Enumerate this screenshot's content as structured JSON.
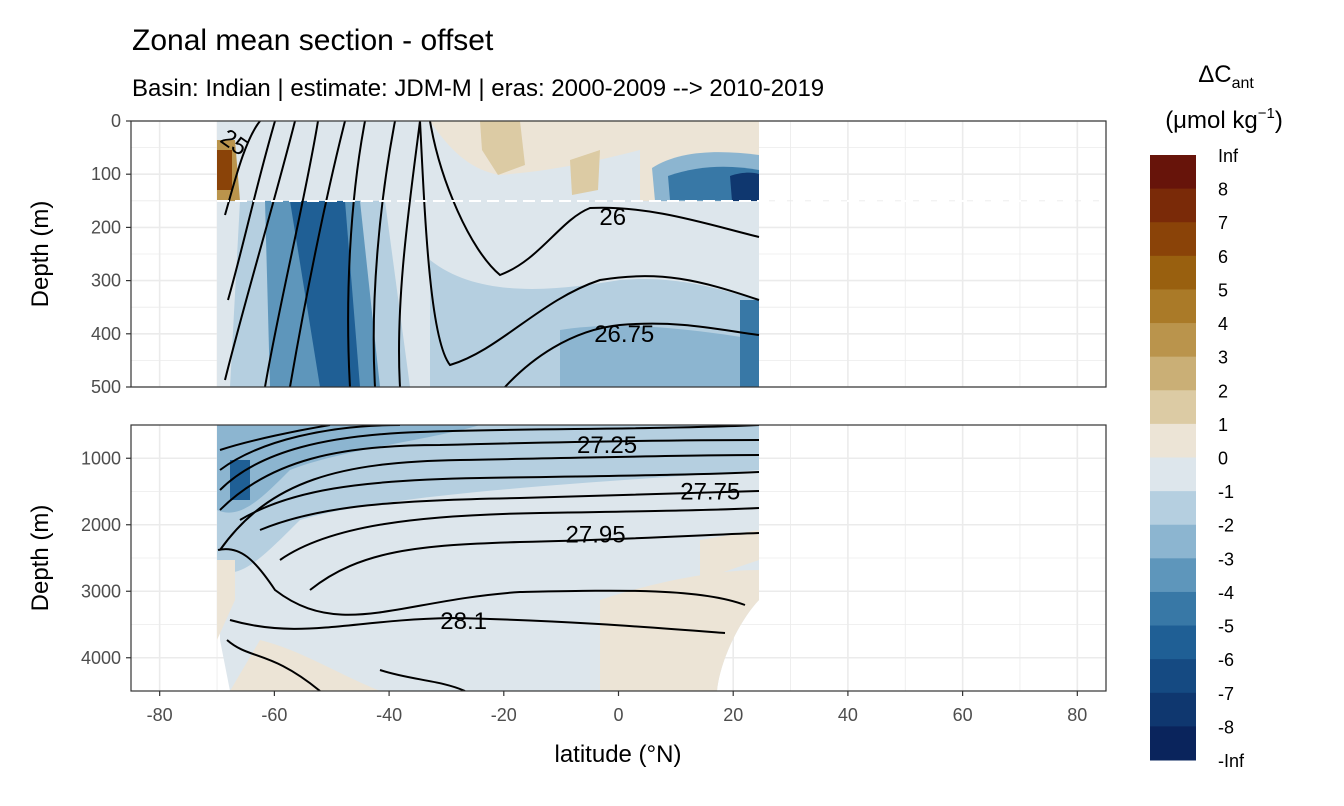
{
  "chart_data": {
    "type": "heatmap",
    "title": "Zonal mean section - offset",
    "subtitle": "Basin: Indian | estimate: JDM-M | eras: 2000-2009 --> 2010-2019",
    "xlabel": "latitude (°N)",
    "ylabel_upper": "Depth (m)",
    "ylabel_lower": "Depth (m)",
    "xlim": [
      -85,
      85
    ],
    "x_ticks": [
      -80,
      -60,
      -40,
      -20,
      0,
      20,
      40,
      60,
      80
    ],
    "x_tick_labels": [
      "-80",
      "-60",
      "-40",
      "-20",
      "0",
      "20",
      "40",
      "60",
      "80"
    ],
    "upper_panel": {
      "ylim": [
        0,
        500
      ],
      "y_ticks": [
        0,
        100,
        200,
        300,
        400,
        500
      ],
      "y_tick_labels": [
        "0",
        "100",
        "200",
        "300",
        "400",
        "500"
      ],
      "dashed_line_depth": 150
    },
    "lower_panel": {
      "ylim": [
        500,
        4500
      ],
      "y_ticks": [
        1000,
        2000,
        3000,
        4000
      ],
      "y_tick_labels": [
        "1000",
        "2000",
        "3000",
        "4000"
      ]
    },
    "data_lat_range": [
      -70,
      24
    ],
    "contour_labels": [
      {
        "label": "25",
        "lat": -67,
        "depth": 40,
        "panel": "upper"
      },
      {
        "label": "26",
        "lat": -1,
        "depth": 180,
        "panel": "upper"
      },
      {
        "label": "26.75",
        "lat": 1,
        "depth": 400,
        "panel": "upper"
      },
      {
        "label": "27.25",
        "lat": -2,
        "depth": 800,
        "panel": "lower"
      },
      {
        "label": "27.75",
        "lat": 16,
        "depth": 1500,
        "panel": "lower"
      },
      {
        "label": "27.95",
        "lat": -4,
        "depth": 2150,
        "panel": "lower"
      },
      {
        "label": "28.1",
        "lat": -27,
        "depth": 3450,
        "panel": "lower"
      }
    ],
    "legend": {
      "title": "ΔC",
      "title_sub": "ant",
      "unit": "(μmol kg",
      "unit_sup": "−1",
      "unit_close": ")",
      "position": "right",
      "labels": [
        "Inf",
        "8",
        "7",
        "6",
        "5",
        "4",
        "3",
        "2",
        "1",
        "0",
        "-1",
        "-2",
        "-3",
        "-4",
        "-5",
        "-6",
        "-7",
        "-8",
        "-Inf"
      ],
      "colors": [
        "#67140a",
        "#7a2a08",
        "#8a4308",
        "#99600f",
        "#aa7a28",
        "#ba944c",
        "#caaf76",
        "#dccba4",
        "#ece4d6",
        "#dde6ec",
        "#b5cfe0",
        "#8cb5d0",
        "#5e96bb",
        "#3878a6",
        "#1f5f95",
        "#154a82",
        "#0f376f",
        "#0a245c"
      ]
    }
  }
}
